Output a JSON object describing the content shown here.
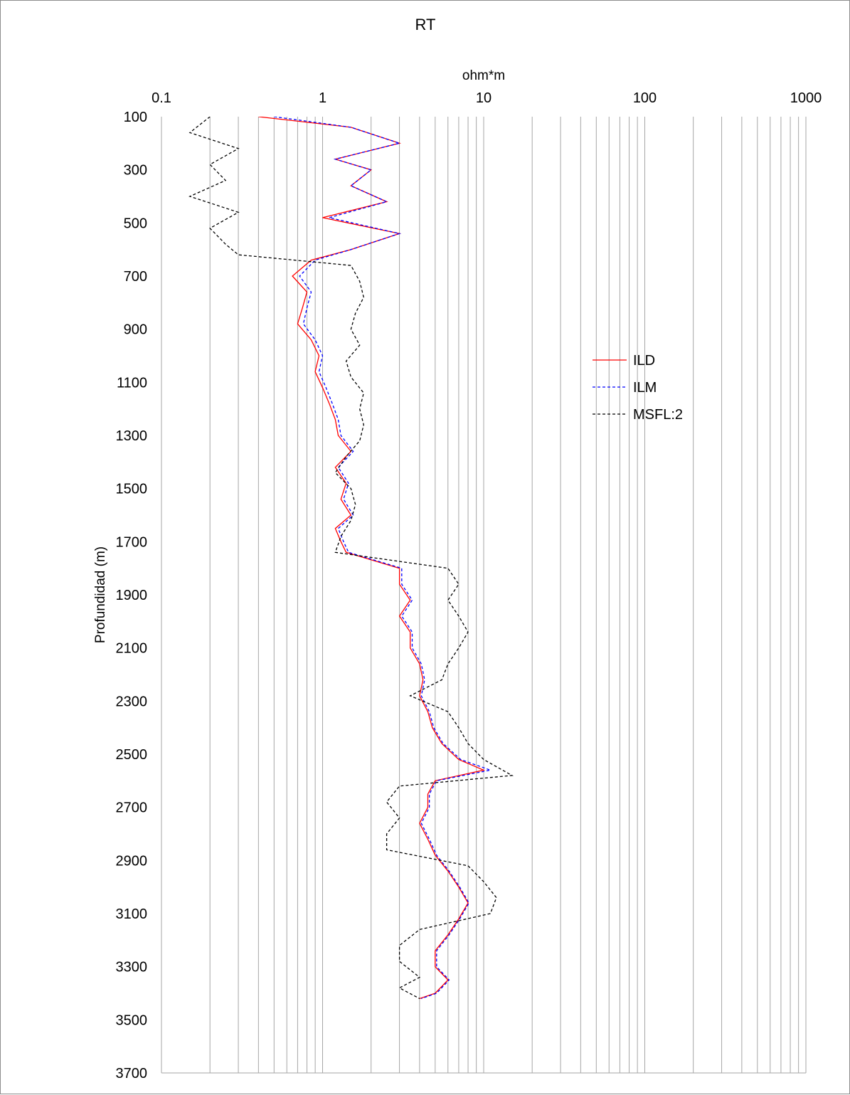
{
  "chart_data": {
    "type": "line",
    "title": "RT",
    "xlabel": "ohm*m",
    "ylabel": "Profundidad (m)",
    "x_scale": "log",
    "xlim": [
      0.1,
      1000
    ],
    "x_tick_labels": [
      "0.1",
      "1",
      "10",
      "100",
      "1000"
    ],
    "ylim": [
      100,
      3700
    ],
    "y_inverted": true,
    "y_tick_labels": [
      "100",
      "300",
      "500",
      "700",
      "900",
      "1100",
      "1300",
      "1500",
      "1700",
      "1900",
      "2100",
      "2300",
      "2500",
      "2700",
      "2900",
      "3100",
      "3300",
      "3500",
      "3700"
    ],
    "grid": {
      "vertical": true,
      "horizontal": false
    },
    "legend_position": "right",
    "series": [
      {
        "name": "ILD",
        "color": "#ff0000",
        "style": "solid",
        "points": [
          [
            0.4,
            100
          ],
          [
            1.5,
            140
          ],
          [
            3,
            200
          ],
          [
            1.2,
            260
          ],
          [
            2,
            300
          ],
          [
            1.5,
            360
          ],
          [
            2.5,
            420
          ],
          [
            1,
            480
          ],
          [
            3,
            540
          ],
          [
            1.5,
            600
          ],
          [
            0.85,
            640
          ],
          [
            0.65,
            700
          ],
          [
            0.8,
            760
          ],
          [
            0.75,
            820
          ],
          [
            0.7,
            880
          ],
          [
            0.85,
            940
          ],
          [
            0.95,
            1000
          ],
          [
            0.9,
            1060
          ],
          [
            1,
            1120
          ],
          [
            1.1,
            1180
          ],
          [
            1.2,
            1240
          ],
          [
            1.25,
            1300
          ],
          [
            1.5,
            1360
          ],
          [
            1.2,
            1420
          ],
          [
            1.4,
            1480
          ],
          [
            1.3,
            1540
          ],
          [
            1.5,
            1600
          ],
          [
            1.2,
            1650
          ],
          [
            1.3,
            1700
          ],
          [
            1.4,
            1740
          ],
          [
            3,
            1800
          ],
          [
            3,
            1860
          ],
          [
            3.5,
            1920
          ],
          [
            3,
            1980
          ],
          [
            3.5,
            2040
          ],
          [
            3.5,
            2100
          ],
          [
            4,
            2160
          ],
          [
            4.2,
            2220
          ],
          [
            4,
            2280
          ],
          [
            4.5,
            2340
          ],
          [
            4.8,
            2400
          ],
          [
            5.5,
            2460
          ],
          [
            7,
            2520
          ],
          [
            10,
            2560
          ],
          [
            5,
            2600
          ],
          [
            4.5,
            2650
          ],
          [
            4.5,
            2700
          ],
          [
            4,
            2760
          ],
          [
            4.5,
            2820
          ],
          [
            5,
            2880
          ],
          [
            6,
            2940
          ],
          [
            7,
            3000
          ],
          [
            8,
            3060
          ],
          [
            7,
            3120
          ],
          [
            6,
            3180
          ],
          [
            5,
            3240
          ],
          [
            5,
            3300
          ],
          [
            6,
            3350
          ],
          [
            5,
            3400
          ],
          [
            4,
            3420
          ]
        ]
      },
      {
        "name": "ILM",
        "color": "#0000ff",
        "style": "dashed",
        "points": [
          [
            0.5,
            100
          ],
          [
            1.5,
            140
          ],
          [
            3,
            200
          ],
          [
            1.2,
            260
          ],
          [
            2,
            300
          ],
          [
            1.5,
            360
          ],
          [
            2.5,
            420
          ],
          [
            1.1,
            480
          ],
          [
            3,
            540
          ],
          [
            1.5,
            600
          ],
          [
            0.9,
            640
          ],
          [
            0.72,
            700
          ],
          [
            0.85,
            760
          ],
          [
            0.8,
            820
          ],
          [
            0.76,
            880
          ],
          [
            0.9,
            940
          ],
          [
            1,
            1000
          ],
          [
            0.95,
            1060
          ],
          [
            1.05,
            1120
          ],
          [
            1.15,
            1180
          ],
          [
            1.25,
            1240
          ],
          [
            1.3,
            1300
          ],
          [
            1.55,
            1360
          ],
          [
            1.25,
            1420
          ],
          [
            1.45,
            1480
          ],
          [
            1.35,
            1540
          ],
          [
            1.55,
            1600
          ],
          [
            1.25,
            1650
          ],
          [
            1.35,
            1700
          ],
          [
            1.45,
            1740
          ],
          [
            3.1,
            1800
          ],
          [
            3.1,
            1860
          ],
          [
            3.6,
            1920
          ],
          [
            3.1,
            1980
          ],
          [
            3.6,
            2040
          ],
          [
            3.6,
            2100
          ],
          [
            4.1,
            2160
          ],
          [
            4.3,
            2220
          ],
          [
            4.1,
            2280
          ],
          [
            4.6,
            2340
          ],
          [
            4.9,
            2400
          ],
          [
            5.6,
            2460
          ],
          [
            7.2,
            2520
          ],
          [
            11,
            2560
          ],
          [
            5.1,
            2600
          ],
          [
            4.6,
            2650
          ],
          [
            4.6,
            2700
          ],
          [
            4.1,
            2760
          ],
          [
            4.6,
            2820
          ],
          [
            5.1,
            2880
          ],
          [
            6.1,
            2940
          ],
          [
            7.1,
            3000
          ],
          [
            8.1,
            3060
          ],
          [
            7.1,
            3120
          ],
          [
            6.1,
            3180
          ],
          [
            5.1,
            3240
          ],
          [
            5.1,
            3300
          ],
          [
            6.1,
            3350
          ],
          [
            5.1,
            3400
          ],
          [
            4.1,
            3420
          ]
        ]
      },
      {
        "name": "MSFL:2",
        "color": "#000000",
        "style": "dashed",
        "points": [
          [
            0.2,
            100
          ],
          [
            0.15,
            160
          ],
          [
            0.3,
            220
          ],
          [
            0.2,
            280
          ],
          [
            0.25,
            340
          ],
          [
            0.15,
            400
          ],
          [
            0.3,
            460
          ],
          [
            0.2,
            520
          ],
          [
            0.25,
            580
          ],
          [
            0.3,
            620
          ],
          [
            1.5,
            660
          ],
          [
            1.7,
            720
          ],
          [
            1.8,
            780
          ],
          [
            1.6,
            840
          ],
          [
            1.5,
            900
          ],
          [
            1.7,
            960
          ],
          [
            1.4,
            1020
          ],
          [
            1.5,
            1080
          ],
          [
            1.8,
            1140
          ],
          [
            1.7,
            1200
          ],
          [
            1.8,
            1260
          ],
          [
            1.7,
            1320
          ],
          [
            1.4,
            1380
          ],
          [
            1.2,
            1440
          ],
          [
            1.5,
            1500
          ],
          [
            1.6,
            1560
          ],
          [
            1.5,
            1620
          ],
          [
            1.3,
            1680
          ],
          [
            1.2,
            1740
          ],
          [
            6,
            1800
          ],
          [
            7,
            1860
          ],
          [
            6,
            1920
          ],
          [
            7,
            1980
          ],
          [
            8,
            2040
          ],
          [
            7,
            2100
          ],
          [
            6,
            2160
          ],
          [
            5.5,
            2220
          ],
          [
            3.5,
            2280
          ],
          [
            6,
            2340
          ],
          [
            7,
            2400
          ],
          [
            8,
            2460
          ],
          [
            10,
            2520
          ],
          [
            15,
            2580
          ],
          [
            3,
            2620
          ],
          [
            2.5,
            2680
          ],
          [
            3,
            2740
          ],
          [
            2.5,
            2800
          ],
          [
            2.5,
            2860
          ],
          [
            8,
            2920
          ],
          [
            10,
            2980
          ],
          [
            12,
            3040
          ],
          [
            11,
            3100
          ],
          [
            4,
            3160
          ],
          [
            3,
            3220
          ],
          [
            3,
            3280
          ],
          [
            4,
            3340
          ],
          [
            3,
            3380
          ],
          [
            4,
            3420
          ]
        ]
      }
    ]
  }
}
